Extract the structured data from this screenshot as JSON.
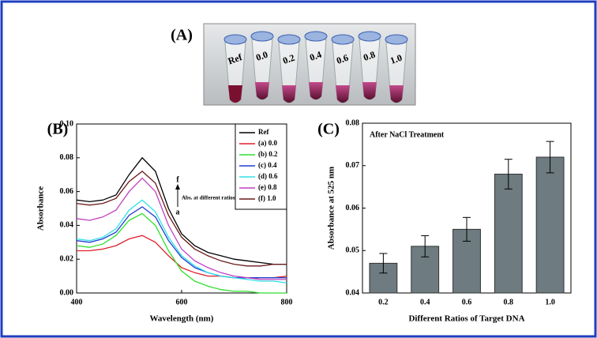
{
  "photo": {
    "panel_label": "(A)",
    "tube_labels": [
      "Ref",
      "0.0",
      "0.2",
      "0.4",
      "0.6",
      "0.8",
      "1.0"
    ]
  },
  "chart_data": [
    {
      "type": "line",
      "panel_label": "(B)",
      "xlabel": "Wavelength (nm)",
      "ylabel": "Absorbance",
      "x": [
        400,
        425,
        450,
        475,
        500,
        525,
        550,
        575,
        600,
        625,
        650,
        675,
        700,
        725,
        750,
        775,
        800
      ],
      "xlim": [
        400,
        800
      ],
      "xticks": [
        400,
        600,
        800
      ],
      "ylim": [
        0,
        0.1
      ],
      "yticks": [
        {
          "value": 0,
          "label": "0.00"
        },
        0.02,
        0.04,
        0.06,
        0.08,
        {
          "value": 0.1,
          "label": "0.10"
        }
      ],
      "legend": "upper right",
      "annotations": [
        "f",
        "Abs. at different ratios",
        "a"
      ],
      "series": [
        {
          "name": "Ref",
          "color": "#000000",
          "values": [
            0.055,
            0.054,
            0.055,
            0.058,
            0.07,
            0.08,
            0.072,
            0.05,
            0.035,
            0.028,
            0.024,
            0.022,
            0.02,
            0.019,
            0.018,
            0.017,
            0.017
          ]
        },
        {
          "name": "(a) 0.0",
          "color": "#e0202a",
          "values": [
            0.025,
            0.025,
            0.026,
            0.028,
            0.032,
            0.034,
            0.03,
            0.022,
            0.015,
            0.012,
            0.01,
            0.01,
            0.009,
            0.009,
            0.009,
            0.009,
            0.01
          ]
        },
        {
          "name": "(b) 0.2",
          "color": "#2ee02e",
          "values": [
            0.028,
            0.027,
            0.029,
            0.034,
            0.043,
            0.047,
            0.04,
            0.025,
            0.013,
            0.007,
            0.004,
            0.002,
            0.001,
            0.001,
            0.0,
            0.0,
            0.0
          ]
        },
        {
          "name": "(c) 0.4",
          "color": "#1f3fd0",
          "values": [
            0.031,
            0.03,
            0.032,
            0.036,
            0.046,
            0.051,
            0.045,
            0.031,
            0.021,
            0.015,
            0.012,
            0.01,
            0.009,
            0.009,
            0.009,
            0.009,
            0.009
          ]
        },
        {
          "name": "(d) 0.6",
          "color": "#30e0e8",
          "values": [
            0.032,
            0.031,
            0.033,
            0.038,
            0.049,
            0.055,
            0.048,
            0.033,
            0.022,
            0.016,
            0.012,
            0.01,
            0.009,
            0.008,
            0.007,
            0.007,
            0.006
          ]
        },
        {
          "name": "(e) 0.8",
          "color": "#c040c0",
          "values": [
            0.044,
            0.043,
            0.045,
            0.049,
            0.06,
            0.068,
            0.06,
            0.04,
            0.026,
            0.019,
            0.015,
            0.012,
            0.01,
            0.009,
            0.008,
            0.008,
            0.008
          ]
        },
        {
          "name": "(f) 1.0",
          "color": "#6a1a1a",
          "values": [
            0.053,
            0.052,
            0.053,
            0.056,
            0.066,
            0.072,
            0.065,
            0.046,
            0.033,
            0.026,
            0.022,
            0.019,
            0.017,
            0.016,
            0.016,
            0.017,
            0.017
          ]
        }
      ]
    },
    {
      "type": "bar",
      "panel_label": "(C)",
      "xlabel": "Different Ratios of Target DNA",
      "ylabel": "Absorbance at 525 nm",
      "annotations": [
        "After NaCl Treatment"
      ],
      "categories": [
        "0.2",
        "0.4",
        "0.6",
        "0.8",
        "1.0"
      ],
      "values": [
        0.047,
        0.051,
        0.055,
        0.068,
        0.072
      ],
      "errors": [
        0.0023,
        0.0025,
        0.0028,
        0.0035,
        0.0037
      ],
      "color": "#6e7b80",
      "ylim": [
        0.04,
        0.08
      ],
      "yticks": [
        0.04,
        0.05,
        0.06,
        0.07,
        0.08
      ]
    }
  ]
}
